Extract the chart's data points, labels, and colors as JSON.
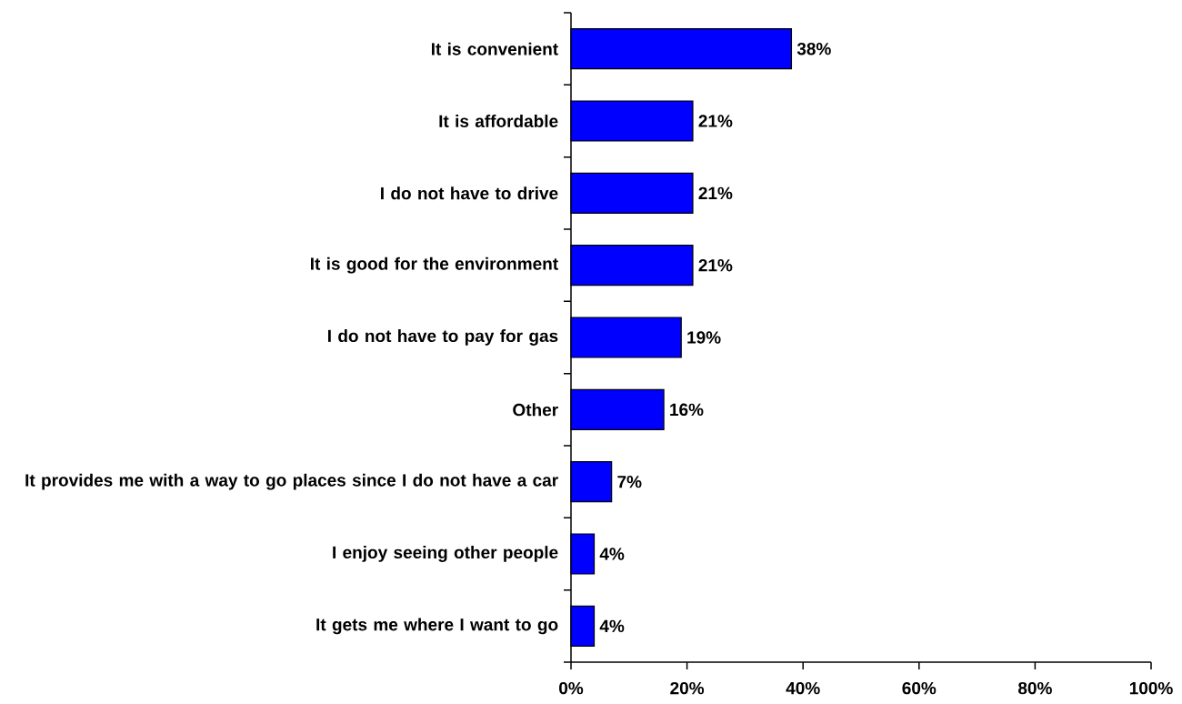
{
  "chart_data": {
    "type": "bar",
    "orientation": "horizontal",
    "categories": [
      "It is convenient",
      "It is affordable",
      "I do not have to drive",
      "It is good for the environment",
      "I do not have to pay for gas",
      "Other",
      "It provides me with a way to go places since I do not have a car",
      "I enjoy seeing other people",
      "It gets me where I want to go"
    ],
    "values": [
      38,
      21,
      21,
      21,
      19,
      16,
      7,
      4,
      4
    ],
    "value_labels": [
      "38%",
      "21%",
      "21%",
      "21%",
      "19%",
      "16%",
      "7%",
      "4%",
      "4%"
    ],
    "color": "#0000ff",
    "xlim": [
      0,
      100
    ],
    "xticks": [
      {
        "value": 0,
        "label": "0%"
      },
      {
        "value": 20,
        "label": "20%"
      },
      {
        "value": 40,
        "label": "40%"
      },
      {
        "value": 60,
        "label": "60%"
      },
      {
        "value": 80,
        "label": "80%"
      },
      {
        "value": 100,
        "label": "100%"
      }
    ]
  }
}
